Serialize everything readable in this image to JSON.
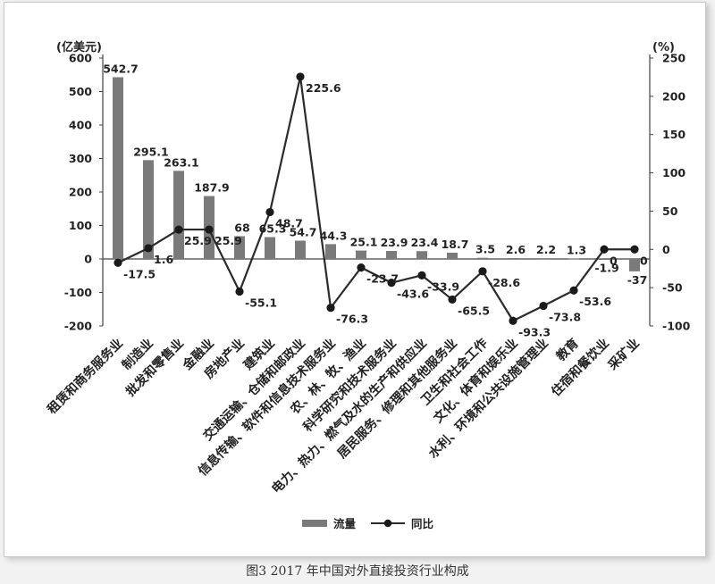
{
  "figure": {
    "caption": "图3  2017 年中国对外直接投资行业构成"
  },
  "chart_data": {
    "type": "bar",
    "left_axis_unit": "(亿美元)",
    "right_axis_unit": "(%)",
    "left_ylim": [
      -200,
      600
    ],
    "left_ticks": [
      600,
      500,
      400,
      300,
      200,
      100,
      0,
      -100,
      -200
    ],
    "right_ylim": [
      -100,
      250
    ],
    "right_ticks": [
      250,
      200,
      150,
      100,
      50,
      0,
      -50,
      -100
    ],
    "grid": false,
    "legend_position": "bottom",
    "categories": [
      "租赁和商务服务业",
      "制造业",
      "批发和零售业",
      "金融业",
      "房地产业",
      "建筑业",
      "交通运输、仓储和邮政业",
      "信息传输、软件和信息技术服务业",
      "农、林、牧、渔业",
      "科学研究和技术服务业",
      "电力、热力、燃气及水的生产和供应业",
      "居民服务、修理和其他服务业",
      "卫生和社会工作",
      "文化、体育和娱乐业",
      "水利、环境和公共设施管理业",
      "教育",
      "住宿和餐饮业",
      "采矿业"
    ],
    "series": [
      {
        "name": "流量",
        "type": "bar",
        "axis": "left",
        "values": [
          542.7,
          295.1,
          263.1,
          187.9,
          68,
          65.3,
          54.7,
          44.3,
          25.1,
          23.9,
          23.4,
          18.7,
          3.5,
          2.6,
          2.2,
          1.3,
          -1.9,
          -37
        ],
        "labels": [
          "542.7",
          "295.1",
          "263.1",
          "187.9",
          "68",
          "65.3",
          "54.7",
          "44.3",
          "25.1",
          "23.9",
          "23.4",
          "18.7",
          "3.5",
          "2.6",
          "2.2",
          "1.3",
          "-1.9",
          "-37"
        ]
      },
      {
        "name": "同比",
        "type": "line",
        "axis": "right",
        "values": [
          -17.5,
          1.6,
          25.9,
          25.9,
          -55.1,
          48.7,
          225.6,
          -76.3,
          -23.7,
          -43.6,
          -33.9,
          -65.5,
          -28.6,
          -93.3,
          -73.8,
          -53.6,
          0,
          0
        ],
        "labels": [
          "-17.5",
          "1.6",
          "25.9",
          "25.9",
          "-55.1",
          "48.7",
          "225.6",
          "-76.3",
          "-23.7",
          "-43.6",
          "-33.9",
          "-65.5",
          "-28.6",
          "-93.3",
          "-73.8",
          "-53.6",
          "0",
          "0"
        ]
      }
    ]
  },
  "colors": {
    "bar": "#7a7a7a",
    "line": "#2b2b2b",
    "marker": "#1a1a1a",
    "axis": "#444444",
    "text": "#222222"
  }
}
